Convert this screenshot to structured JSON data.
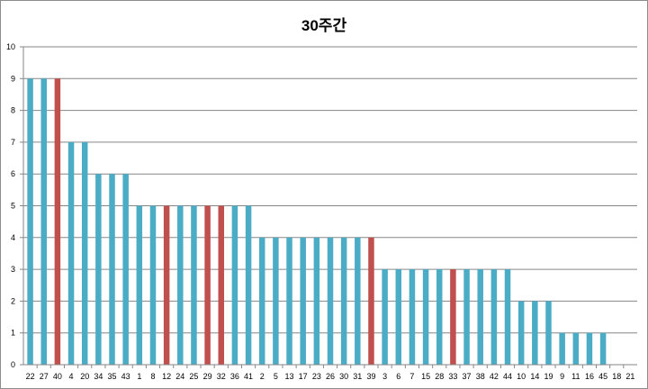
{
  "chart_data": {
    "type": "bar",
    "title": "30주간",
    "xlabel": "",
    "ylabel": "",
    "ylim": [
      0,
      10
    ],
    "ytick_step": 1,
    "grid": true,
    "categories": [
      "22",
      "27",
      "40",
      "4",
      "20",
      "34",
      "35",
      "43",
      "1",
      "8",
      "12",
      "24",
      "25",
      "29",
      "32",
      "36",
      "41",
      "2",
      "5",
      "13",
      "17",
      "23",
      "26",
      "30",
      "31",
      "39",
      "3",
      "6",
      "7",
      "15",
      "28",
      "33",
      "37",
      "38",
      "42",
      "44",
      "10",
      "14",
      "19",
      "9",
      "11",
      "16",
      "45",
      "18",
      "21"
    ],
    "values": [
      9,
      9,
      9,
      7,
      7,
      6,
      6,
      6,
      5,
      5,
      5,
      5,
      5,
      5,
      5,
      5,
      5,
      4,
      4,
      4,
      4,
      4,
      4,
      4,
      4,
      4,
      3,
      3,
      3,
      3,
      3,
      3,
      3,
      3,
      3,
      3,
      2,
      2,
      2,
      1,
      1,
      1,
      1,
      0,
      0
    ],
    "highlighted": [
      "40",
      "12",
      "29",
      "32",
      "39",
      "33"
    ],
    "colors": {
      "default_bar": "#4bacc6",
      "highlight_bar": "#c0504d",
      "gridline": "#868686",
      "axis": "#868686"
    }
  }
}
